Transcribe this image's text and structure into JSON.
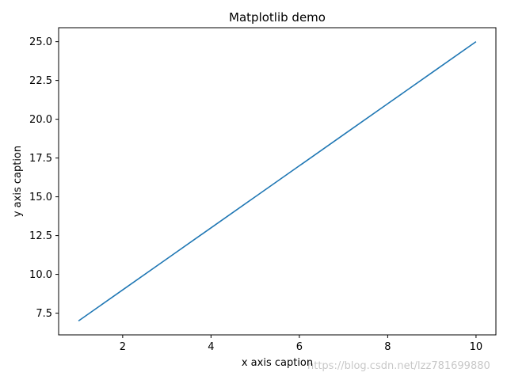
{
  "chart_data": {
    "type": "line",
    "title": "Matplotlib demo",
    "xlabel": "x axis caption",
    "ylabel": "y axis caption",
    "xlim": [
      0.55,
      10.45
    ],
    "ylim": [
      6.1,
      25.9
    ],
    "x_ticks": [
      2,
      4,
      6,
      8,
      10
    ],
    "x_tick_labels": [
      "2",
      "4",
      "6",
      "8",
      "10"
    ],
    "y_ticks": [
      7.5,
      10.0,
      12.5,
      15.0,
      17.5,
      20.0,
      22.5,
      25.0
    ],
    "y_tick_labels": [
      "7.5",
      "10.0",
      "12.5",
      "15.0",
      "17.5",
      "20.0",
      "22.5",
      "25.0"
    ],
    "grid": false,
    "series": [
      {
        "color": "#1f77b4",
        "x": [
          1,
          2,
          3,
          4,
          5,
          6,
          7,
          8,
          9,
          10
        ],
        "y": [
          7,
          9,
          11,
          13,
          15,
          17,
          19,
          21,
          23,
          25
        ]
      }
    ]
  },
  "watermark": "https://blog.csdn.net/lzz781699880"
}
